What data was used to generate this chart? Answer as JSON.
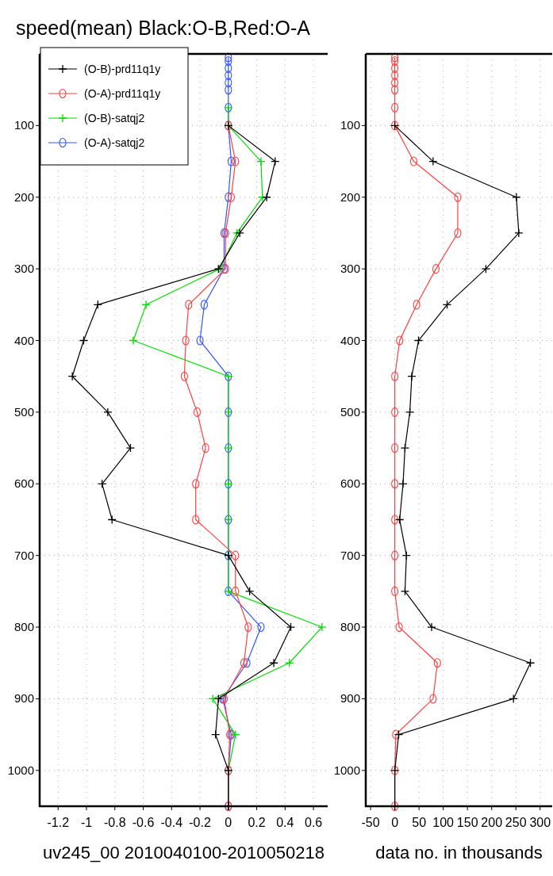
{
  "chart_data": [
    {
      "type": "line",
      "title": "speed(mean)  Black:O-B,Red:O-A",
      "xlabel": "uv245_00 2010040100-2010050218",
      "orientation": "horizontal",
      "x": [
        5,
        10,
        20,
        30,
        40,
        50,
        75,
        100,
        150,
        200,
        250,
        300,
        350,
        400,
        450,
        500,
        550,
        600,
        650,
        700,
        750,
        800,
        850,
        900,
        950,
        1000,
        1050
      ],
      "xlim": [
        -1.33,
        0.7
      ],
      "xticks": [
        -1.2,
        -1,
        -0.8,
        -0.6,
        -0.4,
        -0.2,
        0,
        0.2,
        0.4,
        0.6
      ],
      "ylim": [
        1050,
        0
      ],
      "yticks": [
        100,
        200,
        300,
        400,
        500,
        600,
        700,
        800,
        900,
        1000
      ],
      "grid": true,
      "legend": "top left",
      "series": [
        {
          "name": "(O-B)-prd11q1y",
          "color": "#000000",
          "marker": "cross",
          "values": [
            null,
            null,
            null,
            null,
            null,
            null,
            null,
            0,
            0.33,
            0.27,
            0.08,
            -0.07,
            -0.92,
            -1.02,
            -1.1,
            -0.85,
            -0.69,
            -0.89,
            -0.82,
            0,
            0.15,
            0.44,
            0.32,
            -0.07,
            -0.09,
            0,
            0
          ]
        },
        {
          "name": "(O-A)-prd11q1y",
          "color": "#ff4040",
          "marker": "circle",
          "values": [
            null,
            null,
            null,
            null,
            null,
            null,
            null,
            0,
            0.05,
            0.02,
            -0.02,
            -0.02,
            -0.28,
            -0.3,
            -0.31,
            -0.22,
            -0.16,
            -0.23,
            -0.23,
            0.05,
            0.05,
            0.14,
            0.11,
            -0.03,
            0.01,
            0,
            0
          ]
        },
        {
          "name": "(O-B)-satqj2",
          "color": "#00dd00",
          "marker": "cross",
          "values": [
            null,
            null,
            null,
            null,
            null,
            null,
            0,
            0,
            0.23,
            0.24,
            0.06,
            -0.06,
            -0.58,
            -0.67,
            0,
            0,
            0,
            0,
            0,
            0,
            0,
            0.66,
            0.43,
            -0.11,
            0.05,
            0,
            0
          ]
        },
        {
          "name": "(O-A)-satqj2",
          "color": "#3355ff",
          "marker": "circle",
          "values": [
            0,
            0,
            0,
            0,
            0,
            0,
            0,
            0,
            0.02,
            0,
            -0.03,
            -0.03,
            -0.17,
            -0.2,
            0,
            0,
            0,
            0,
            0,
            0,
            0,
            0.23,
            0.13,
            -0.04,
            0.02,
            0,
            0
          ]
        }
      ]
    },
    {
      "type": "line",
      "xlabel": "data no. in thousands",
      "orientation": "horizontal",
      "x": [
        5,
        10,
        20,
        30,
        40,
        50,
        75,
        100,
        150,
        200,
        250,
        300,
        350,
        400,
        450,
        500,
        550,
        600,
        650,
        700,
        750,
        800,
        850,
        900,
        950,
        1000,
        1050
      ],
      "xlim": [
        -60,
        325
      ],
      "xticks": [
        -50,
        0,
        50,
        100,
        150,
        200,
        250,
        300
      ],
      "ylim": [
        1050,
        0
      ],
      "yticks": [
        100,
        200,
        300,
        400,
        500,
        600,
        700,
        800,
        900,
        1000
      ],
      "grid": true,
      "series": [
        {
          "color": "#000000",
          "marker": "cross",
          "values": [
            null,
            null,
            null,
            null,
            null,
            null,
            null,
            0,
            79,
            251,
            256,
            188,
            108,
            49,
            35,
            31,
            21,
            17,
            10,
            24,
            21,
            76,
            280,
            245,
            8,
            0,
            0
          ]
        },
        {
          "color": "#ff4040",
          "marker": "circle",
          "values": [
            0,
            0,
            0,
            0,
            0,
            0,
            0,
            0,
            39,
            130,
            130,
            85,
            45,
            10,
            0,
            0,
            0,
            0,
            0,
            0,
            0,
            9,
            88,
            79,
            2,
            0,
            0
          ]
        }
      ]
    }
  ]
}
